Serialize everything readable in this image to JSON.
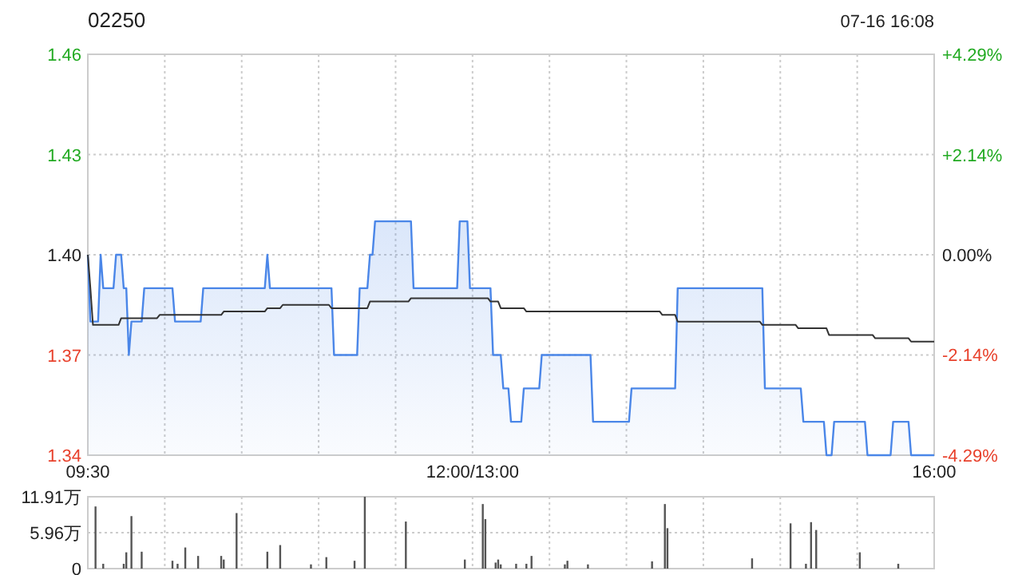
{
  "chart_data": [
    {
      "type": "area",
      "title": "02250",
      "subtitle": "07-16 16:08",
      "grid": true,
      "categories": [
        "09:30",
        null,
        null,
        null,
        null,
        null,
        null,
        null,
        null,
        null,
        null,
        null,
        null,
        null,
        null,
        null,
        null,
        null,
        null,
        null,
        null,
        null,
        null,
        null,
        null,
        null,
        null,
        null,
        null,
        null,
        null,
        null,
        null,
        null,
        null,
        null,
        null,
        null,
        null,
        null,
        null,
        null,
        null,
        null,
        null,
        null,
        null,
        null,
        null,
        null,
        null,
        null,
        null,
        null,
        null,
        null,
        null,
        null,
        null,
        null,
        null,
        null,
        null,
        null,
        null,
        null,
        null,
        null,
        null,
        null,
        null,
        null,
        null,
        null,
        null,
        null,
        null,
        null,
        null,
        null,
        null,
        null,
        null,
        null,
        null,
        null,
        null,
        null,
        null,
        null,
        null,
        null,
        null,
        null,
        null,
        null,
        null,
        null,
        null,
        null,
        null,
        null,
        null,
        null,
        null,
        null,
        null,
        null,
        null,
        null,
        null,
        null,
        null,
        null,
        null,
        null,
        null,
        null,
        null,
        null,
        null,
        null,
        null,
        null,
        null,
        null,
        null,
        null,
        null,
        null,
        null,
        null,
        null,
        null,
        null,
        null,
        null,
        null,
        null,
        null,
        null,
        null,
        null,
        null,
        null,
        null,
        null,
        null,
        null,
        null,
        "12:00/13:00",
        null,
        null,
        null,
        null,
        null,
        null,
        null,
        null,
        null,
        null,
        null,
        null,
        null,
        null,
        null,
        null,
        null,
        null,
        null,
        null,
        null,
        null,
        null,
        null,
        null,
        null,
        null,
        null,
        null,
        null,
        null,
        null,
        null,
        null,
        null,
        null,
        null,
        null,
        null,
        null,
        null,
        null,
        null,
        null,
        null,
        null,
        null,
        null,
        null,
        null,
        null,
        null,
        null,
        null,
        null,
        null,
        null,
        null,
        null,
        null,
        null,
        null,
        null,
        null,
        null,
        null,
        null,
        null,
        null,
        null,
        null,
        null,
        null,
        null,
        null,
        null,
        null,
        null,
        null,
        null,
        null,
        null,
        null,
        null,
        null,
        null,
        null,
        null,
        null,
        null,
        null,
        null,
        null,
        null,
        null,
        null,
        null,
        null,
        null,
        null,
        null,
        null,
        null,
        null,
        null,
        null,
        null,
        null,
        null,
        null,
        null,
        null,
        null,
        null,
        null,
        null,
        null,
        null,
        null,
        null,
        null,
        null,
        null,
        null,
        null,
        null,
        null,
        null,
        null,
        null,
        null,
        null,
        null,
        null,
        null,
        null,
        null,
        null,
        null,
        null,
        null,
        null,
        null,
        null,
        null,
        null,
        null,
        null,
        null,
        null,
        null,
        null,
        null,
        null,
        null,
        null,
        null,
        null,
        null,
        null,
        null,
        null,
        null,
        null,
        null,
        null,
        null,
        null,
        null,
        null,
        null,
        null,
        null,
        null,
        null,
        null,
        null,
        null,
        null,
        "16:00"
      ],
      "ylim": [
        1.34,
        1.46
      ],
      "yticks": [
        1.34,
        1.37,
        {
          "value": 1.4,
          "label": "1.40"
        },
        1.43,
        1.46
      ],
      "y2lim": [
        -4.29,
        4.29
      ],
      "y2ticks": [
        {
          "value": -4.29,
          "label": "-4.29%"
        },
        {
          "value": -2.14,
          "label": "-2.14%"
        },
        {
          "value": 0,
          "label": "0.00%"
        },
        {
          "value": 2.14,
          "label": "+2.14%"
        },
        {
          "value": 4.29,
          "label": "+4.29%"
        }
      ],
      "series": [
        {
          "color": "#4a86e8",
          "values": [
            1.4,
            1.38,
            1.38,
            1.38,
            1.38,
            1.4,
            1.39,
            1.39,
            1.39,
            1.39,
            1.39,
            1.4,
            1.4,
            1.4,
            1.39,
            1.39,
            1.37,
            1.38,
            1.38,
            1.38,
            1.38,
            1.38,
            1.39,
            1.39,
            1.39,
            1.39,
            1.39,
            1.39,
            1.39,
            1.39,
            1.39,
            1.39,
            1.39,
            1.39,
            1.38,
            1.38,
            1.38,
            1.38,
            1.38,
            1.38,
            1.38,
            1.38,
            1.38,
            1.38,
            1.38,
            1.39,
            1.39,
            1.39,
            1.39,
            1.39,
            1.39,
            1.39,
            1.39,
            1.39,
            1.39,
            1.39,
            1.39,
            1.39,
            1.39,
            1.39,
            1.39,
            1.39,
            1.39,
            1.39,
            1.39,
            1.39,
            1.39,
            1.39,
            1.39,
            1.39,
            1.4,
            1.39,
            1.39,
            1.39,
            1.39,
            1.39,
            1.39,
            1.39,
            1.39,
            1.39,
            1.39,
            1.39,
            1.39,
            1.39,
            1.39,
            1.39,
            1.39,
            1.39,
            1.39,
            1.39,
            1.39,
            1.39,
            1.39,
            1.39,
            1.39,
            1.39,
            1.37,
            1.37,
            1.37,
            1.37,
            1.37,
            1.37,
            1.37,
            1.37,
            1.37,
            1.37,
            1.39,
            1.39,
            1.39,
            1.39,
            1.4,
            1.4,
            1.41,
            1.41,
            1.41,
            1.41,
            1.41,
            1.41,
            1.41,
            1.41,
            1.41,
            1.41,
            1.41,
            1.41,
            1.41,
            1.41,
            1.41,
            1.39,
            1.39,
            1.39,
            1.39,
            1.39,
            1.39,
            1.39,
            1.39,
            1.39,
            1.39,
            1.39,
            1.39,
            1.39,
            1.39,
            1.39,
            1.39,
            1.39,
            1.39,
            1.41,
            1.41,
            1.41,
            1.41,
            1.39,
            1.39,
            1.39,
            1.39,
            1.39,
            1.39,
            1.39,
            1.39,
            1.39,
            1.37,
            1.37,
            1.37,
            1.37,
            1.36,
            1.36,
            1.36,
            1.35,
            1.35,
            1.35,
            1.35,
            1.35,
            1.36,
            1.36,
            1.36,
            1.36,
            1.36,
            1.36,
            1.36,
            1.37,
            1.37,
            1.37,
            1.37,
            1.37,
            1.37,
            1.37,
            1.37,
            1.37,
            1.37,
            1.37,
            1.37,
            1.37,
            1.37,
            1.37,
            1.37,
            1.37,
            1.37,
            1.37,
            1.37,
            1.35,
            1.35,
            1.35,
            1.35,
            1.35,
            1.35,
            1.35,
            1.35,
            1.35,
            1.35,
            1.35,
            1.35,
            1.35,
            1.35,
            1.35,
            1.36,
            1.36,
            1.36,
            1.36,
            1.36,
            1.36,
            1.36,
            1.36,
            1.36,
            1.36,
            1.36,
            1.36,
            1.36,
            1.36,
            1.36,
            1.36,
            1.36,
            1.36,
            1.39,
            1.39,
            1.39,
            1.39,
            1.39,
            1.39,
            1.39,
            1.39,
            1.39,
            1.39,
            1.39,
            1.39,
            1.39,
            1.39,
            1.39,
            1.39,
            1.39,
            1.39,
            1.39,
            1.39,
            1.39,
            1.39,
            1.39,
            1.39,
            1.39,
            1.39,
            1.39,
            1.39,
            1.39,
            1.39,
            1.39,
            1.39,
            1.39,
            1.39,
            1.36,
            1.36,
            1.36,
            1.36,
            1.36,
            1.36,
            1.36,
            1.36,
            1.36,
            1.36,
            1.36,
            1.36,
            1.36,
            1.36,
            1.36,
            1.35,
            1.35,
            1.35,
            1.35,
            1.35,
            1.35,
            1.35,
            1.35,
            1.35,
            1.34,
            1.34,
            1.34,
            1.35,
            1.35,
            1.35,
            1.35,
            1.35,
            1.35,
            1.35,
            1.35,
            1.35,
            1.35,
            1.35,
            1.35,
            1.35,
            1.34,
            1.34,
            1.34,
            1.34,
            1.34,
            1.34,
            1.34,
            1.34,
            1.34,
            1.34,
            1.35,
            1.35,
            1.35,
            1.35,
            1.35,
            1.35,
            1.35,
            1.34,
            1.34,
            1.34,
            1.34,
            1.34,
            1.34,
            1.34,
            1.34,
            1.34,
            1.34
          ]
        },
        {
          "type": "line",
          "color": "#333333",
          "values": [
            1.4,
            1.39,
            1.379,
            1.379,
            1.379,
            1.379,
            1.379,
            1.379,
            1.379,
            1.379,
            1.379,
            1.379,
            1.379,
            1.381,
            1.381,
            1.381,
            1.381,
            1.381,
            1.381,
            1.381,
            1.381,
            1.381,
            1.381,
            1.381,
            1.381,
            1.381,
            1.381,
            1.381,
            1.382,
            1.382,
            1.382,
            1.382,
            1.382,
            1.382,
            1.382,
            1.382,
            1.382,
            1.382,
            1.382,
            1.382,
            1.382,
            1.382,
            1.382,
            1.382,
            1.382,
            1.382,
            1.382,
            1.382,
            1.382,
            1.382,
            1.382,
            1.382,
            1.382,
            1.383,
            1.383,
            1.383,
            1.383,
            1.383,
            1.383,
            1.383,
            1.383,
            1.383,
            1.383,
            1.383,
            1.383,
            1.383,
            1.383,
            1.383,
            1.383,
            1.383,
            1.384,
            1.384,
            1.384,
            1.384,
            1.384,
            1.384,
            1.385,
            1.385,
            1.385,
            1.385,
            1.385,
            1.385,
            1.385,
            1.385,
            1.385,
            1.385,
            1.385,
            1.385,
            1.385,
            1.385,
            1.385,
            1.385,
            1.385,
            1.385,
            1.385,
            1.384,
            1.384,
            1.384,
            1.384,
            1.384,
            1.384,
            1.384,
            1.384,
            1.384,
            1.384,
            1.384,
            1.384,
            1.384,
            1.384,
            1.384,
            1.386,
            1.386,
            1.386,
            1.386,
            1.386,
            1.386,
            1.386,
            1.386,
            1.386,
            1.386,
            1.386,
            1.386,
            1.386,
            1.386,
            1.386,
            1.386,
            1.387,
            1.387,
            1.387,
            1.387,
            1.387,
            1.387,
            1.387,
            1.387,
            1.387,
            1.387,
            1.387,
            1.387,
            1.387,
            1.387,
            1.387,
            1.387,
            1.387,
            1.387,
            1.387,
            1.387,
            1.387,
            1.387,
            1.387,
            1.387,
            1.387,
            1.387,
            1.387,
            1.387,
            1.387,
            1.387,
            1.387,
            1.386,
            1.386,
            1.386,
            1.386,
            1.384,
            1.384,
            1.384,
            1.384,
            1.384,
            1.384,
            1.384,
            1.384,
            1.384,
            1.384,
            1.383,
            1.383,
            1.383,
            1.383,
            1.383,
            1.383,
            1.383,
            1.383,
            1.383,
            1.383,
            1.383,
            1.383,
            1.383,
            1.383,
            1.383,
            1.383,
            1.383,
            1.383,
            1.383,
            1.383,
            1.383,
            1.383,
            1.383,
            1.383,
            1.383,
            1.383,
            1.383,
            1.383,
            1.383,
            1.383,
            1.383,
            1.383,
            1.383,
            1.383,
            1.383,
            1.383,
            1.383,
            1.383,
            1.383,
            1.383,
            1.383,
            1.383,
            1.383,
            1.383,
            1.383,
            1.383,
            1.383,
            1.383,
            1.383,
            1.383,
            1.383,
            1.383,
            1.383,
            1.382,
            1.382,
            1.382,
            1.382,
            1.382,
            1.382,
            1.38,
            1.38,
            1.38,
            1.38,
            1.38,
            1.38,
            1.38,
            1.38,
            1.38,
            1.38,
            1.38,
            1.38,
            1.38,
            1.38,
            1.38,
            1.38,
            1.38,
            1.38,
            1.38,
            1.38,
            1.38,
            1.38,
            1.38,
            1.38,
            1.38,
            1.38,
            1.38,
            1.38,
            1.38,
            1.38,
            1.38,
            1.38,
            1.38,
            1.379,
            1.379,
            1.379,
            1.379,
            1.379,
            1.379,
            1.379,
            1.379,
            1.379,
            1.379,
            1.379,
            1.379,
            1.379,
            1.379,
            1.378,
            1.378,
            1.378,
            1.378,
            1.378,
            1.378,
            1.378,
            1.378,
            1.378,
            1.378,
            1.378,
            1.378,
            1.376,
            1.376,
            1.376,
            1.376,
            1.376,
            1.376,
            1.376,
            1.376,
            1.376,
            1.376,
            1.376,
            1.376,
            1.376,
            1.376,
            1.376,
            1.376,
            1.376,
            1.376,
            1.375,
            1.375,
            1.375,
            1.375,
            1.375,
            1.375,
            1.375,
            1.375,
            1.375,
            1.375,
            1.375,
            1.375,
            1.375,
            1.375,
            1.374,
            1.374,
            1.374,
            1.374,
            1.374,
            1.374,
            1.374,
            1.374,
            1.374,
            1.374
          ]
        }
      ]
    },
    {
      "type": "bar",
      "grid": true,
      "tick_labels": "y",
      "categories": [
        null,
        null,
        null,
        null,
        null,
        null,
        null,
        null,
        null,
        null,
        null,
        null,
        null,
        null,
        null,
        null,
        null,
        null,
        null,
        null,
        null,
        null,
        null,
        null,
        null,
        null,
        null,
        null,
        null,
        null,
        null,
        null,
        null,
        null,
        null,
        null,
        null,
        null,
        null,
        null,
        null,
        null,
        null,
        null,
        null,
        null,
        null,
        null,
        null,
        null,
        null,
        null,
        null,
        null,
        null,
        null,
        null,
        null,
        null,
        null,
        null,
        null,
        null,
        null,
        null,
        null,
        null,
        null,
        null,
        null,
        null,
        null,
        null,
        null,
        null,
        null,
        null,
        null,
        null,
        null,
        null,
        null,
        null,
        null,
        null,
        null,
        null,
        null,
        null,
        null,
        null,
        null,
        null,
        null,
        null,
        null,
        null,
        null,
        null,
        null,
        null,
        null,
        null,
        null,
        null,
        null,
        null,
        null,
        null,
        null,
        null,
        null,
        null,
        null,
        null,
        null,
        null,
        null,
        null,
        null,
        null,
        null,
        null,
        null,
        null,
        null,
        null,
        null,
        null,
        null,
        null,
        null,
        null,
        null,
        null,
        null,
        null,
        null,
        null,
        null,
        null,
        null,
        null,
        null,
        null,
        null,
        null,
        null,
        null,
        null,
        null,
        null,
        null,
        null,
        null,
        null,
        null,
        null,
        null,
        null,
        null,
        null,
        null,
        null,
        null,
        null,
        null,
        null,
        null,
        null,
        null,
        null,
        null,
        null,
        null,
        null,
        null,
        null,
        null,
        null,
        null,
        null,
        null,
        null,
        null,
        null,
        null,
        null,
        null,
        null,
        null,
        null,
        null,
        null,
        null,
        null,
        null,
        null,
        null,
        null,
        null,
        null,
        null,
        null,
        null,
        null,
        null,
        null,
        null,
        null,
        null,
        null,
        null,
        null,
        null,
        null,
        null,
        null,
        null,
        null,
        null,
        null,
        null,
        null,
        null,
        null,
        null,
        null,
        null,
        null,
        null,
        null,
        null,
        null,
        null,
        null,
        null,
        null,
        null,
        null,
        null,
        null,
        null,
        null,
        null,
        null,
        null,
        null,
        null,
        null,
        null,
        null,
        null,
        null,
        null,
        null,
        null,
        null,
        null,
        null,
        null,
        null,
        null,
        null,
        null,
        null,
        null,
        null,
        null,
        null,
        null,
        null,
        null,
        null,
        null,
        null,
        null,
        null,
        null,
        null,
        null,
        null,
        null,
        null,
        null,
        null,
        null,
        null,
        null,
        null,
        null,
        null,
        null,
        null,
        null,
        null,
        null,
        null,
        null,
        null,
        null,
        null,
        null,
        null,
        null,
        null,
        null,
        null,
        null,
        null,
        null,
        null,
        null,
        null,
        null,
        null,
        null,
        null,
        null,
        null,
        null,
        null,
        null,
        null,
        null,
        null,
        null,
        null,
        null,
        null,
        null
      ],
      "ylim": [
        0,
        11.91
      ],
      "yticks": [
        0,
        {
          "value": 5.96,
          "label": "5.96万"
        },
        {
          "value": 11.91,
          "label": "11.91万"
        }
      ],
      "series": [
        {
          "color": "#555555",
          "values": [
            null,
            null,
            null,
            10.3,
            null,
            null,
            0.8,
            null,
            null,
            null,
            null,
            null,
            null,
            null,
            0.8,
            2.7,
            null,
            8.7,
            null,
            null,
            null,
            2.8,
            null,
            null,
            null,
            null,
            null,
            null,
            null,
            null,
            null,
            null,
            null,
            1.3,
            null,
            0.8,
            null,
            null,
            3.5,
            null,
            null,
            null,
            null,
            2.1,
            null,
            null,
            null,
            null,
            null,
            null,
            null,
            null,
            2.1,
            1.5,
            null,
            null,
            null,
            null,
            9.2,
            null,
            null,
            null,
            null,
            null,
            null,
            null,
            null,
            null,
            null,
            null,
            2.8,
            null,
            null,
            null,
            null,
            3.9,
            null,
            null,
            null,
            null,
            null,
            null,
            null,
            null,
            null,
            null,
            null,
            0.7,
            null,
            null,
            null,
            null,
            null,
            1.9,
            null,
            null,
            null,
            null,
            null,
            null,
            null,
            null,
            null,
            null,
            1.3,
            null,
            null,
            null,
            11.9,
            null,
            null,
            null,
            null,
            null,
            null,
            null,
            null,
            null,
            null,
            null,
            null,
            null,
            null,
            null,
            7.8,
            null,
            null,
            null,
            null,
            null,
            null,
            null,
            null,
            null,
            null,
            null,
            null,
            null,
            null,
            null,
            null,
            null,
            null,
            null,
            null,
            null,
            null,
            1.5,
            null,
            null,
            null,
            null,
            null,
            null,
            10.7,
            8.2,
            null,
            null,
            null,
            1.0,
            1.5,
            0.7,
            null,
            null,
            null,
            null,
            null,
            0.8,
            null,
            null,
            null,
            0.8,
            null,
            2.1,
            null,
            null,
            null,
            null,
            null,
            null,
            null,
            null,
            null,
            null,
            null,
            null,
            0.7,
            1.3,
            null,
            null,
            null,
            null,
            null,
            null,
            null,
            0.7,
            null,
            null,
            null,
            null,
            null,
            null,
            null,
            null,
            null,
            null,
            null,
            null,
            null,
            null,
            null,
            null,
            null,
            null,
            null,
            null,
            null,
            null,
            null,
            null,
            1.2,
            null,
            null,
            null,
            null,
            10.7,
            6.7,
            null,
            null,
            null,
            null,
            null,
            null,
            null,
            null,
            null,
            null,
            null,
            null,
            null,
            null,
            null,
            null,
            null,
            null,
            null,
            null,
            null,
            null,
            null,
            null,
            null,
            null,
            null,
            null,
            null,
            null,
            null,
            null,
            1.7,
            null,
            null,
            null,
            null,
            null,
            null,
            null,
            null,
            null,
            null,
            null,
            null,
            null,
            null,
            7.5,
            null,
            null,
            null,
            null,
            null,
            0.8,
            null,
            7.7,
            null,
            6.4,
            null,
            null,
            null,
            null,
            null,
            null,
            null,
            null,
            null,
            null,
            null,
            null,
            null,
            null,
            null,
            null,
            2.7,
            null,
            null,
            null,
            null,
            null,
            null,
            null,
            null,
            null,
            null,
            null,
            null,
            null,
            null,
            0.8,
            null,
            null,
            null,
            null,
            null,
            null,
            null,
            null,
            null,
            null,
            null,
            null,
            null,
            null
          ]
        }
      ]
    }
  ]
}
